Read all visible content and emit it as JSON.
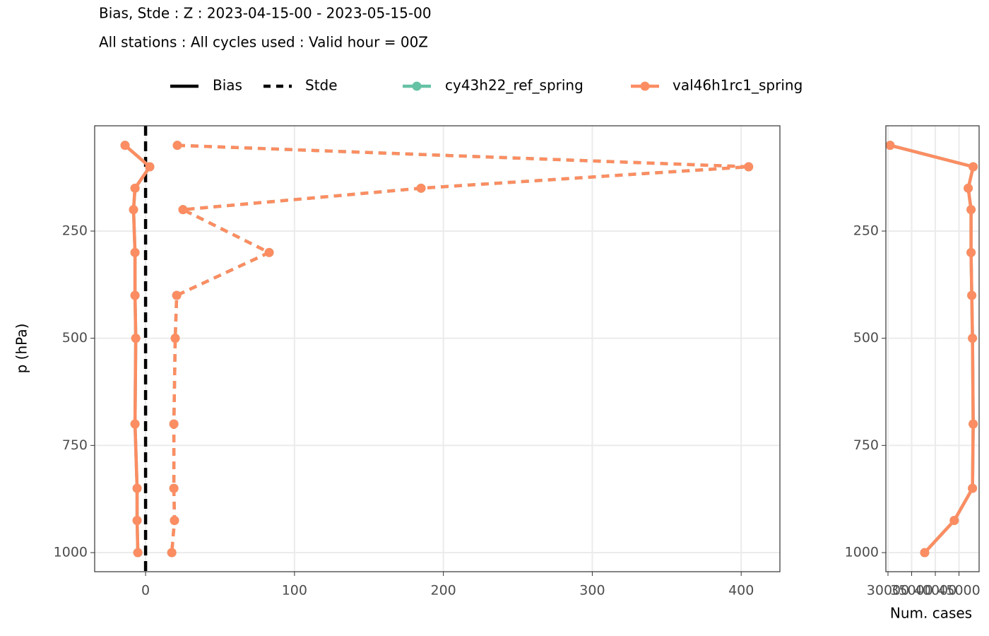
{
  "chart_data": [
    {
      "type": "profile",
      "title": "Bias, Stde : Z : 2023-04-15-00 - 2023-05-15-00",
      "subtitle": "All stations : All cycles used : Valid hour = 00Z",
      "ylabel": "p (hPa)",
      "linetypes": [
        {
          "name": "Bias",
          "dash": "solid"
        },
        {
          "name": "Stde",
          "dash": "dashed"
        }
      ],
      "levels": [
        50,
        100,
        150,
        200,
        300,
        400,
        500,
        700,
        850,
        925,
        1000
      ],
      "series": [
        {
          "name": "cy43h22_ref_spring",
          "color": "#66c2a5",
          "bias": [
            -13.8,
            2.8,
            -7.1,
            -8.1,
            -7.1,
            -7.1,
            -6.6,
            -7.1,
            -5.7,
            -5.7,
            -5.2
          ],
          "stde": [
            21.3,
            405,
            185,
            25.1,
            83,
            20.9,
            19.9,
            19.0,
            19.0,
            19.4,
            17.6
          ]
        },
        {
          "name": "val46h1rc1_spring",
          "color": "#fc8d62",
          "bias": [
            -13.8,
            2.8,
            -7.1,
            -8.1,
            -7.1,
            -7.1,
            -6.6,
            -7.1,
            -5.7,
            -5.7,
            -5.2
          ],
          "stde": [
            21.3,
            405,
            185,
            25.1,
            83,
            20.9,
            19.9,
            19.0,
            19.0,
            19.4,
            17.6
          ]
        }
      ],
      "vline": 0,
      "xlim": [
        -34.2,
        426
      ],
      "xticks": [
        0,
        100,
        200,
        300,
        400
      ],
      "ylim": [
        1044.5,
        4.4
      ],
      "yticks": [
        250,
        500,
        750,
        1000
      ],
      "grid": true
    },
    {
      "type": "line",
      "xlabel": "Num. cases",
      "levels": [
        50,
        100,
        150,
        200,
        300,
        400,
        500,
        700,
        850,
        925,
        1000
      ],
      "series": [
        {
          "name": "cy43h22_ref_spring",
          "color": "#66c2a5",
          "values": [
            30450,
            48000,
            46950,
            47550,
            47550,
            47700,
            47850,
            48000,
            47850,
            44000,
            37750
          ]
        },
        {
          "name": "val46h1rc1_spring",
          "color": "#fc8d62",
          "values": [
            30450,
            48000,
            46950,
            47550,
            47550,
            47700,
            47850,
            48000,
            47850,
            44000,
            37750
          ]
        }
      ],
      "xlim": [
        29550,
        49250
      ],
      "xticks": [
        30000,
        35000,
        40000,
        45000
      ],
      "ylim": [
        1044.5,
        4.4
      ],
      "yticks": [
        250,
        500,
        750,
        1000
      ],
      "grid": true
    }
  ]
}
